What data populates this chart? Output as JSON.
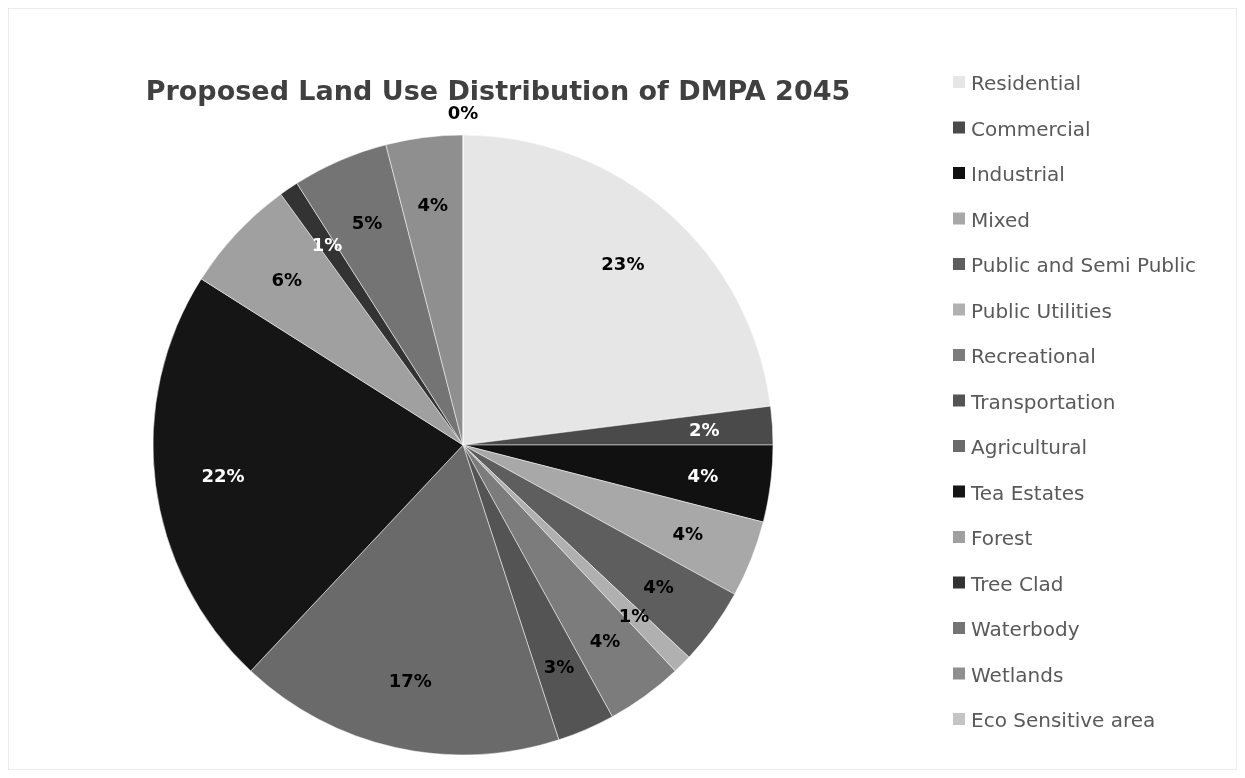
{
  "chart_data": {
    "type": "pie",
    "title": "Proposed Land Use Distribution of DMPA 2045",
    "categories": [
      "Residential",
      "Commercial",
      "Industrial",
      "Mixed",
      "Public and Semi Public",
      "Public Utilities",
      "Recreational",
      "Transportation",
      "Agricultural",
      "Tea Estates",
      "Forest",
      "Tree Clad",
      "Waterbody",
      "Wetlands",
      "Eco Sensitive area"
    ],
    "values": [
      23,
      2,
      4,
      4,
      4,
      1,
      4,
      3,
      17,
      22,
      6,
      1,
      5,
      4,
      0
    ],
    "value_labels": [
      "23%",
      "2%",
      "4%",
      "4%",
      "4%",
      "1%",
      "4%",
      "3%",
      "17%",
      "22%",
      "6%",
      "1%",
      "5%",
      "4%",
      "0%"
    ],
    "colors": [
      "#e6e6e6",
      "#4a4a4a",
      "#111111",
      "#a8a8a8",
      "#5e5e5e",
      "#b0b0b0",
      "#7c7c7c",
      "#545454",
      "#6a6a6a",
      "#151515",
      "#a0a0a0",
      "#333333",
      "#747474",
      "#8f8f8f",
      "#c4c4c4"
    ],
    "legend": "right"
  }
}
